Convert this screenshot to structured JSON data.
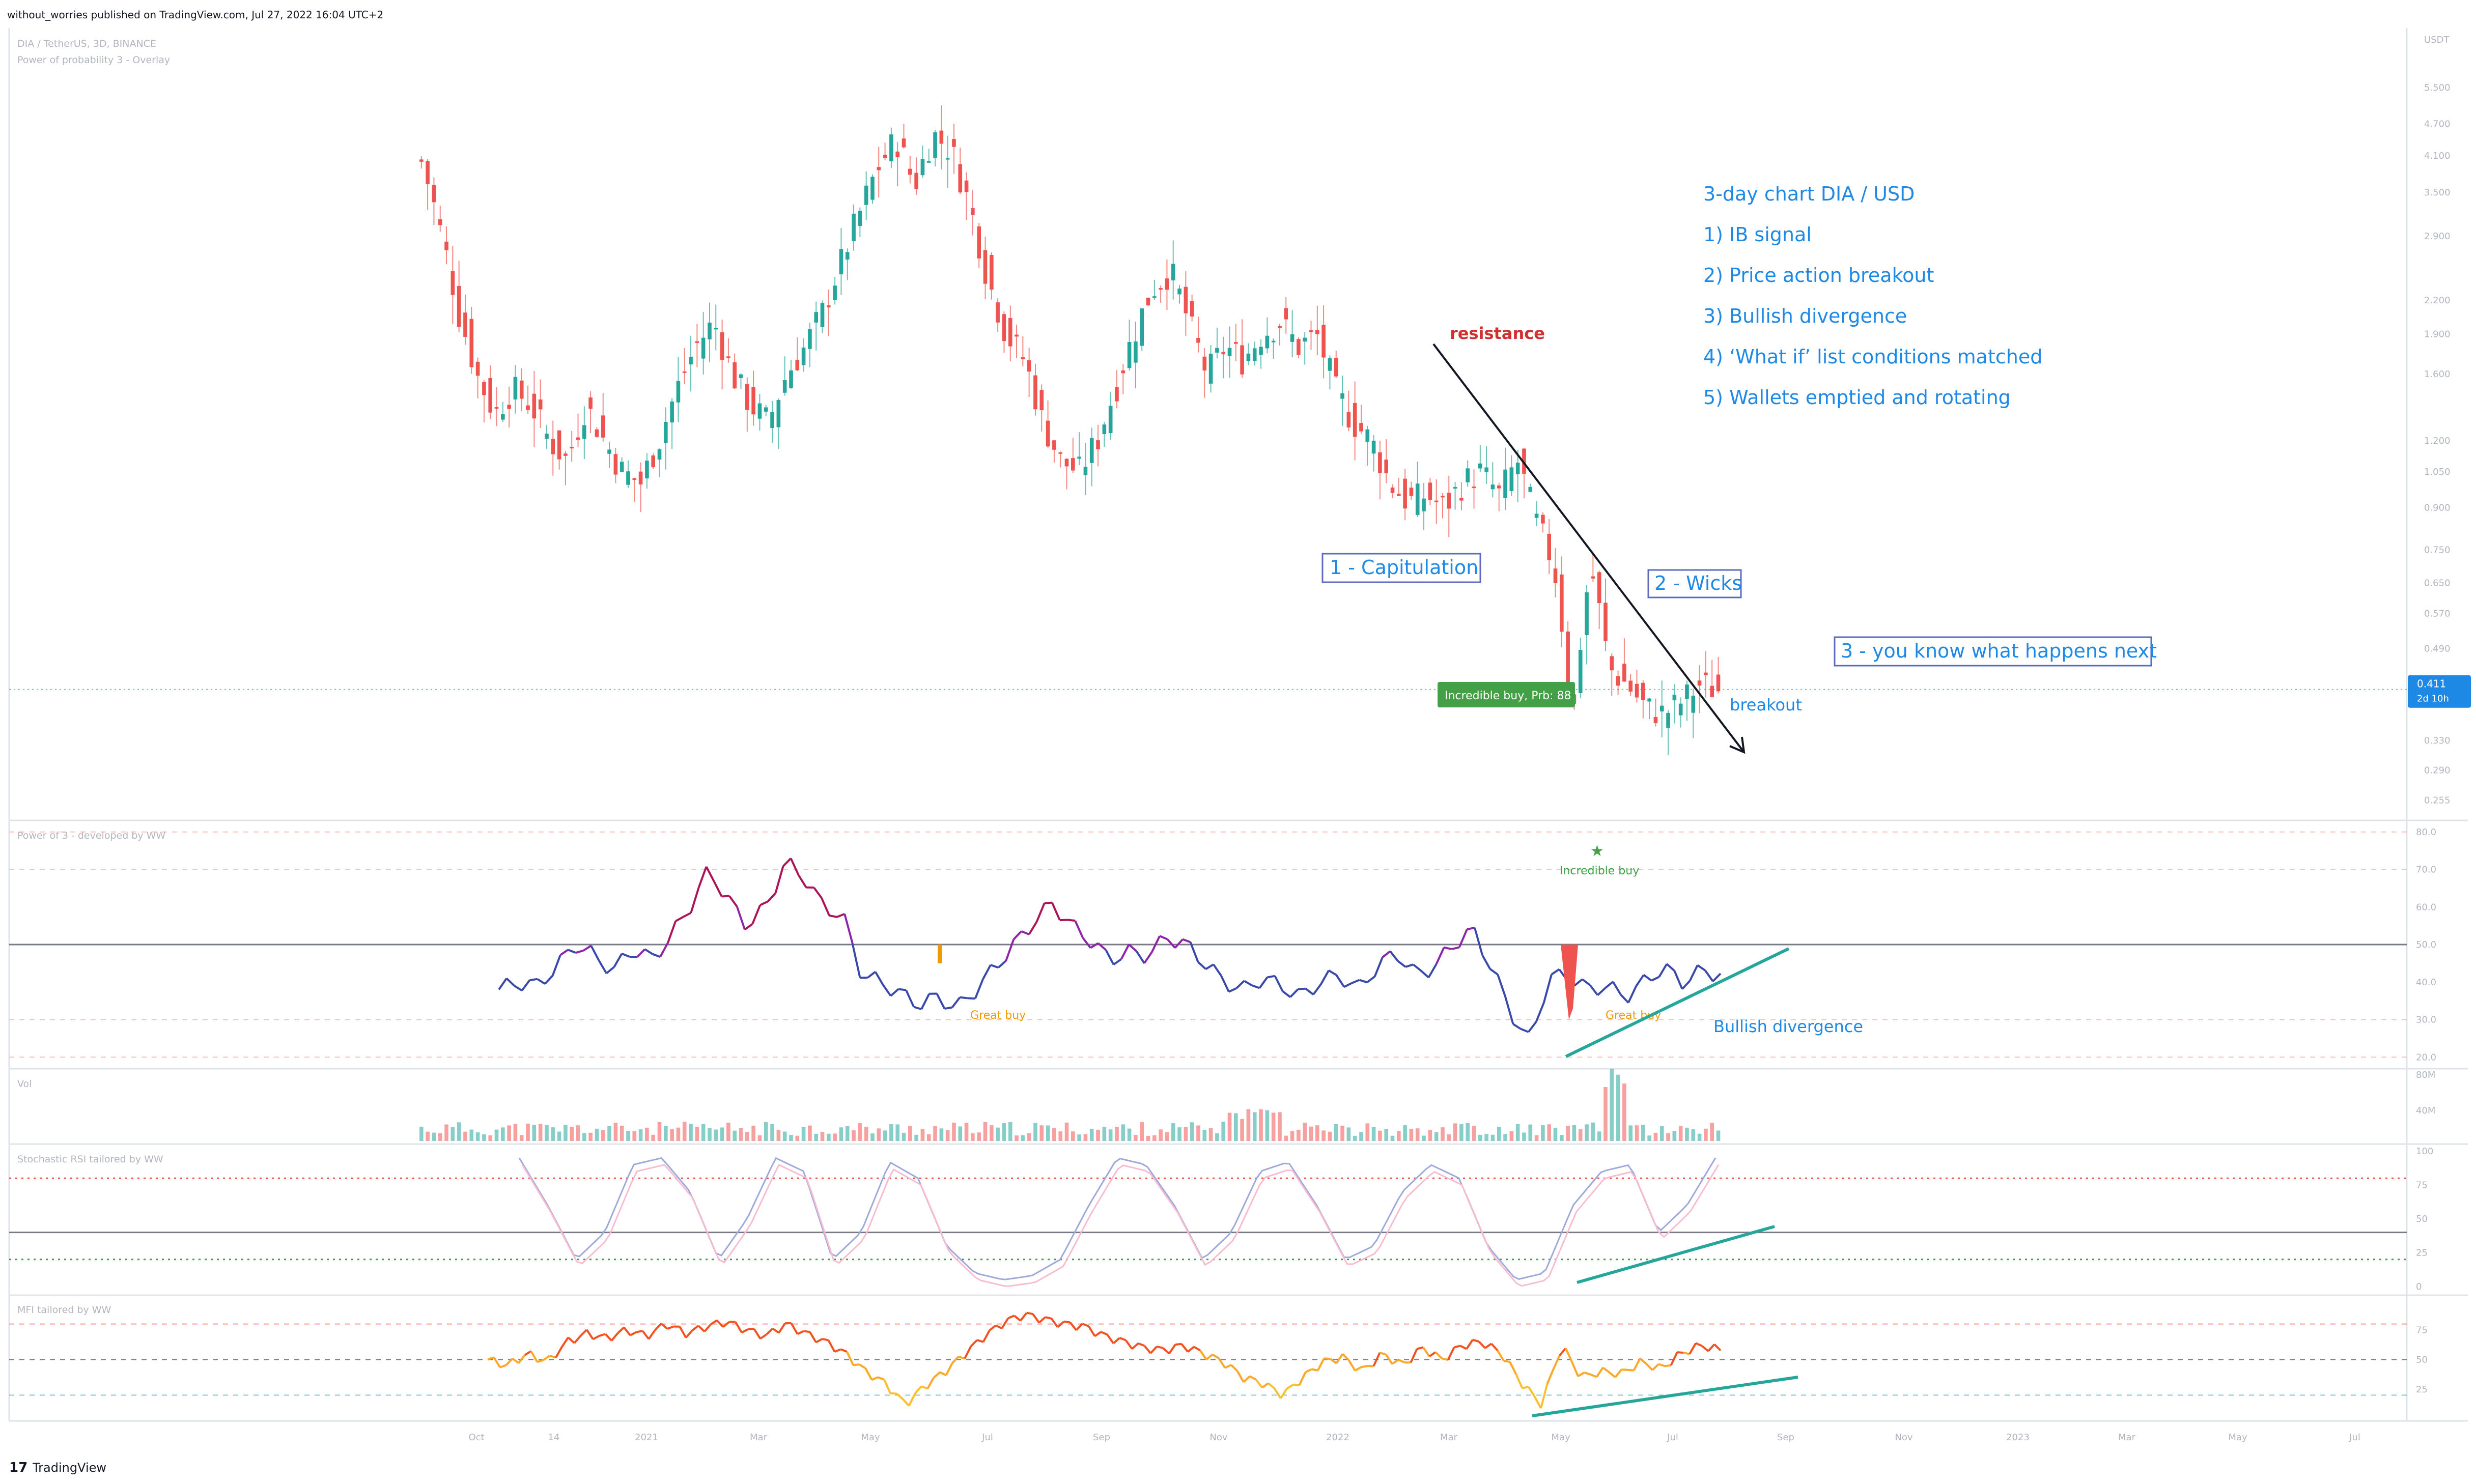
{
  "header": {
    "published_by": "without_worries published on TradingView.com, Jul 27, 2022 16:04 UTC+2",
    "symbol_line": "DIA / TetherUS, 3D, BINANCE",
    "overlay_line": "Power of probability 3 - Overlay"
  },
  "footer": {
    "brand": "TradingView"
  },
  "colors": {
    "up": "#26a69a",
    "down": "#ef5350",
    "annotation": "#1e88e5",
    "resistance": "#d32f2f",
    "trendline": "#26a69a",
    "price_badge": "#1e88e5"
  },
  "chart_data": [
    {
      "type": "candlestick",
      "panel": "price",
      "axis_unit": "USDT",
      "y_scale": "log",
      "ylim": [
        0.24,
        5.9
      ],
      "yticks": [
        "5.500",
        "4.700",
        "4.100",
        "3.500",
        "2.900",
        "2.200",
        "1.900",
        "1.600",
        "1.200",
        "1.050",
        "0.900",
        "0.750",
        "0.650",
        "0.570",
        "0.490",
        "0.330",
        "0.290",
        "0.255"
      ],
      "ytick_values": [
        5.5,
        4.7,
        4.1,
        3.5,
        2.9,
        2.2,
        1.9,
        1.6,
        1.2,
        1.05,
        0.9,
        0.75,
        0.65,
        0.57,
        0.49,
        0.33,
        0.29,
        0.255
      ],
      "last_price": "0.411",
      "last_price_value": 0.411,
      "countdown": "2d 10h",
      "ohlc_path": [
        4.0,
        3.0,
        2.1,
        1.6,
        1.35,
        1.5,
        1.4,
        1.2,
        1.1,
        1.4,
        1.2,
        1.05,
        1.0,
        1.2,
        1.5,
        1.8,
        2.0,
        1.6,
        1.4,
        1.3,
        1.6,
        1.8,
        2.1,
        2.6,
        3.2,
        3.9,
        4.4,
        3.6,
        4.5,
        4.2,
        3.3,
        2.4,
        1.9,
        1.7,
        1.3,
        1.1,
        1.05,
        1.2,
        1.5,
        1.9,
        2.3,
        2.5,
        2.0,
        1.6,
        1.8,
        1.7,
        1.9,
        2.0,
        1.8,
        1.9,
        1.5,
        1.3,
        1.2,
        1.0,
        0.92,
        0.95,
        0.9,
        1.0,
        1.05,
        0.95,
        1.1,
        0.85,
        0.7,
        0.34,
        0.7,
        0.45,
        0.42,
        0.38,
        0.37,
        0.39,
        0.42,
        0.41
      ],
      "annotations": {
        "resistance": "resistance",
        "capitulation": "1 - Capitulation",
        "wicks": "2 - Wicks",
        "next": "3 - you know what happens next",
        "breakout": "breakout",
        "signal": "Incredible buy, Prb: 88",
        "notes": [
          "3-day chart DIA / USD",
          "1) IB signal",
          "2) Price action breakout",
          "3) Bullish divergence",
          "4) ‘What if’ list conditions matched",
          "5) Wallets emptied and rotating"
        ]
      }
    },
    {
      "type": "line",
      "panel": "oscillator",
      "title": "Power of 3 - developed by WW",
      "ylim": [
        18,
        82
      ],
      "yticks": [
        "80.0",
        "70.0",
        "60.0",
        "50.0",
        "40.0",
        "30.0",
        "20.0"
      ],
      "ytick_values": [
        80,
        70,
        60,
        50,
        40,
        30,
        20
      ],
      "path": [
        38,
        40,
        39,
        44,
        50,
        47,
        43,
        49,
        46,
        52,
        60,
        70,
        62,
        55,
        60,
        72,
        68,
        60,
        58,
        42,
        40,
        37,
        34,
        36,
        33,
        38,
        44,
        50,
        56,
        61,
        55,
        51,
        46,
        48,
        47,
        52,
        50,
        45,
        40,
        38,
        41,
        39,
        36,
        40,
        42,
        38,
        44,
        48,
        42,
        44,
        50,
        54,
        44,
        32,
        24,
        41,
        42,
        38,
        39,
        36,
        40,
        44,
        40,
        43,
        42
      ],
      "labels": {
        "incredible": "Incredible buy",
        "great1": "Great buy",
        "great2": "Great buy",
        "divergence": "Bullish divergence"
      }
    },
    {
      "type": "bar",
      "panel": "volume",
      "title": "Vol",
      "yticks": [
        "80M",
        "40M"
      ],
      "ytick_values": [
        80,
        40
      ]
    },
    {
      "type": "line",
      "panel": "stoch_rsi",
      "title": "Stochastic RSI tailored by WW",
      "ylim": [
        0,
        100
      ],
      "yticks": [
        "100",
        "75",
        "50",
        "25",
        "0"
      ],
      "ytick_values": [
        100,
        75,
        50,
        25,
        0
      ],
      "k_path": [
        95,
        60,
        20,
        40,
        90,
        95,
        70,
        20,
        50,
        95,
        85,
        20,
        40,
        92,
        80,
        30,
        10,
        5,
        8,
        20,
        60,
        95,
        90,
        60,
        20,
        40,
        85,
        92,
        60,
        20,
        30,
        70,
        90,
        80,
        30,
        5,
        10,
        60,
        85,
        90,
        40,
        60,
        95
      ]
    },
    {
      "type": "line",
      "panel": "mfi",
      "title": "MFI tailored by WW",
      "ylim": [
        0,
        100
      ],
      "yticks": [
        "75",
        "50",
        "25"
      ],
      "ytick_values": [
        75,
        50,
        25
      ],
      "path": [
        50,
        45,
        55,
        48,
        65,
        72,
        68,
        75,
        70,
        80,
        72,
        78,
        82,
        75,
        70,
        80,
        72,
        65,
        55,
        40,
        30,
        12,
        28,
        40,
        55,
        70,
        82,
        88,
        84,
        80,
        78,
        70,
        65,
        60,
        58,
        62,
        55,
        48,
        35,
        30,
        20,
        35,
        48,
        52,
        40,
        55,
        45,
        60,
        50,
        62,
        65,
        55,
        30,
        12,
        62,
        35,
        40,
        38,
        48,
        42,
        55,
        62,
        58
      ]
    },
    {
      "type": "axis",
      "panel": "time",
      "x_tick_labels": [
        "Oct",
        "14",
        "2021",
        "Mar",
        "May",
        "Jul",
        "Sep",
        "Nov",
        "2022",
        "Mar",
        "May",
        "Jul",
        "Sep",
        "Nov",
        "2023",
        "Mar",
        "May",
        "Jul"
      ]
    }
  ]
}
